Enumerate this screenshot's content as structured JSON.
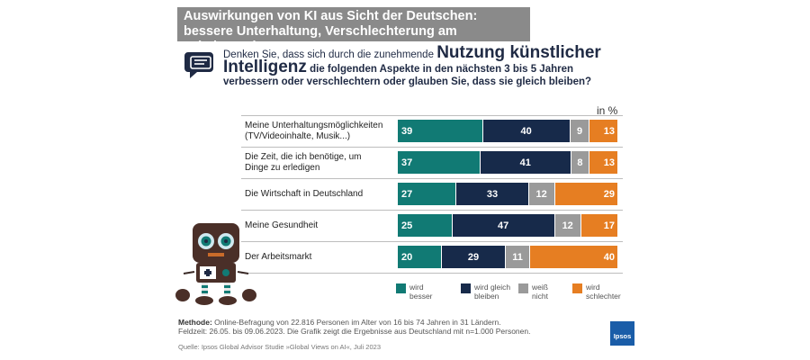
{
  "title": {
    "line1": "Auswirkungen von KI aus Sicht der Deutschen:",
    "line2": "bessere Unterhaltung, Verschlechterung am Arbeitsmarkt"
  },
  "question": {
    "part1": "Denken Sie, dass sich durch die zunehmende",
    "highlight1": "Nutzung künstlicher",
    "highlight2": "Intelligenz",
    "part2": "die folgenden Aspekte in den nächsten 3 bis 5 Jahren verbessern oder verschlechtern oder glauben Sie, dass sie gleich bleiben?"
  },
  "unit_label": "in %",
  "colors": {
    "besser": "#117a74",
    "gleich": "#172a4a",
    "weiss": "#9a9a9a",
    "schlechter": "#e67e22"
  },
  "chart_data": {
    "type": "bar",
    "orientation": "horizontal-stacked-100",
    "categories": [
      "Meine Unterhaltungsmöglichkeiten (TV/Videoinhalte, Musik...)",
      "Die Zeit, die ich benötige, um Dinge zu erledigen",
      "Die Wirtschaft in Deutschland",
      "Meine Gesundheit",
      "Der Arbeitsmarkt"
    ],
    "category_lines": [
      [
        "Meine Unterhaltungsmöglichkeiten",
        "(TV/Videoinhalte, Musik...)"
      ],
      [
        "Die Zeit, die ich benötige, um",
        "Dinge zu erledigen"
      ],
      [
        "Die Wirtschaft in Deutschland"
      ],
      [
        "Meine Gesundheit"
      ],
      [
        "Der Arbeitsmarkt"
      ]
    ],
    "series": [
      {
        "name": "wird besser",
        "values": [
          39,
          37,
          27,
          25,
          20
        ]
      },
      {
        "name": "wird gleich bleiben",
        "values": [
          40,
          41,
          33,
          47,
          29
        ]
      },
      {
        "name": "weiß nicht",
        "values": [
          9,
          8,
          12,
          12,
          11
        ]
      },
      {
        "name": "wird schlechter",
        "values": [
          13,
          13,
          29,
          17,
          40
        ]
      }
    ],
    "legend": [
      [
        "wird",
        "besser"
      ],
      [
        "wird gleich",
        "bleiben"
      ],
      [
        "weiß",
        "nicht"
      ],
      [
        "wird",
        "schlechter"
      ]
    ]
  },
  "methodology": {
    "label": "Methode:",
    "line1": "Online-Befragung von 22.816 Personen im Alter von 16 bis 74 Jahren in 31 Ländern.",
    "line2": "Feldzeit: 26.05. bis 09.06.2023. Die Grafik zeigt die Ergebnisse aus Deutschland mit n=1.000 Personen."
  },
  "source": "Quelle: Ipsos Global Advisor Studie »Global Views on AI«, Juli 2023",
  "logo_text": "Ipsos"
}
